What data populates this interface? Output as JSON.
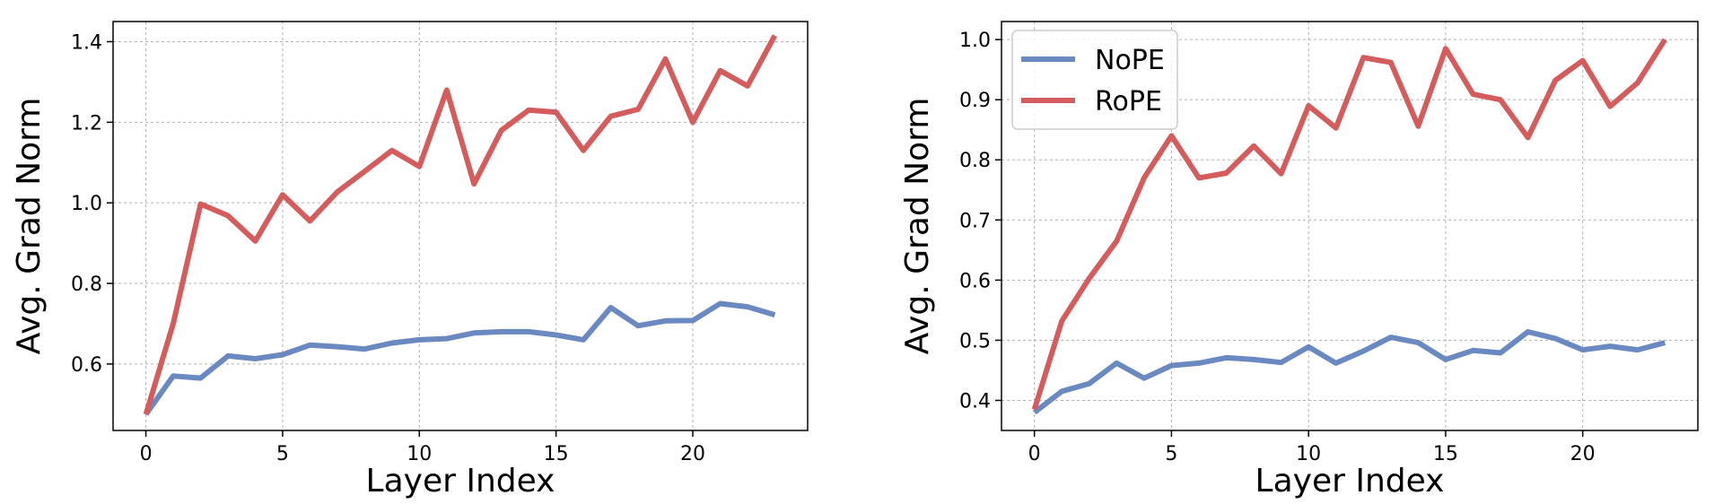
{
  "chart_data": [
    {
      "type": "line",
      "xlabel": "Layer Index",
      "ylabel": "Avg. Grad Norm",
      "xlim": [
        -1.2,
        24.2
      ],
      "ylim": [
        0.435,
        1.45
      ],
      "xticks": [
        0,
        5,
        10,
        15,
        20
      ],
      "yticks": [
        0.6,
        0.8,
        1.0,
        1.2,
        1.4
      ],
      "ytick_labels": [
        "0.6",
        "0.8",
        "1.0",
        "1.2",
        "1.4"
      ],
      "grid": true,
      "legend": null,
      "x": [
        0,
        1,
        2,
        3,
        4,
        5,
        6,
        7,
        8,
        9,
        10,
        11,
        12,
        13,
        14,
        15,
        16,
        17,
        18,
        19,
        20,
        21,
        22,
        23
      ],
      "series": [
        {
          "color": "#6a89c1",
          "values": [
            0.475,
            0.57,
            0.565,
            0.62,
            0.613,
            0.623,
            0.647,
            0.643,
            0.637,
            0.652,
            0.66,
            0.663,
            0.677,
            0.68,
            0.68,
            0.672,
            0.66,
            0.74,
            0.695,
            0.707,
            0.708,
            0.75,
            0.742,
            0.722
          ]
        },
        {
          "color": "#d45c5c",
          "values": [
            0.475,
            0.7,
            0.997,
            0.968,
            0.905,
            1.02,
            0.955,
            1.027,
            1.078,
            1.13,
            1.09,
            1.28,
            1.047,
            1.18,
            1.23,
            1.225,
            1.13,
            1.215,
            1.232,
            1.357,
            1.2,
            1.328,
            1.29,
            1.415
          ]
        }
      ]
    },
    {
      "type": "line",
      "xlabel": "Layer Index",
      "ylabel": "Avg. Grad Norm",
      "xlim": [
        -1.2,
        24.2
      ],
      "ylim": [
        0.35,
        1.03
      ],
      "xticks": [
        0,
        5,
        10,
        15,
        20
      ],
      "yticks": [
        0.4,
        0.5,
        0.6,
        0.7,
        0.8,
        0.9,
        1.0
      ],
      "ytick_labels": [
        "0.4",
        "0.5",
        "0.6",
        "0.7",
        "0.8",
        "0.9",
        "1.0"
      ],
      "grid": true,
      "legend": "top-left",
      "x": [
        0,
        1,
        2,
        3,
        4,
        5,
        6,
        7,
        8,
        9,
        10,
        11,
        12,
        13,
        14,
        15,
        16,
        17,
        18,
        19,
        20,
        21,
        22,
        23
      ],
      "series": [
        {
          "name": "NoPE",
          "color": "#6a89c1",
          "values": [
            0.38,
            0.415,
            0.428,
            0.462,
            0.437,
            0.458,
            0.462,
            0.471,
            0.468,
            0.463,
            0.489,
            0.462,
            0.482,
            0.505,
            0.496,
            0.468,
            0.483,
            0.479,
            0.514,
            0.503,
            0.484,
            0.49,
            0.484,
            0.496
          ]
        },
        {
          "name": "RoPE",
          "color": "#d45c5c",
          "values": [
            0.385,
            0.532,
            0.603,
            0.665,
            0.77,
            0.84,
            0.77,
            0.778,
            0.823,
            0.777,
            0.89,
            0.853,
            0.97,
            0.962,
            0.856,
            0.985,
            0.909,
            0.9,
            0.837,
            0.932,
            0.965,
            0.889,
            0.928,
            1.0
          ]
        }
      ]
    }
  ]
}
